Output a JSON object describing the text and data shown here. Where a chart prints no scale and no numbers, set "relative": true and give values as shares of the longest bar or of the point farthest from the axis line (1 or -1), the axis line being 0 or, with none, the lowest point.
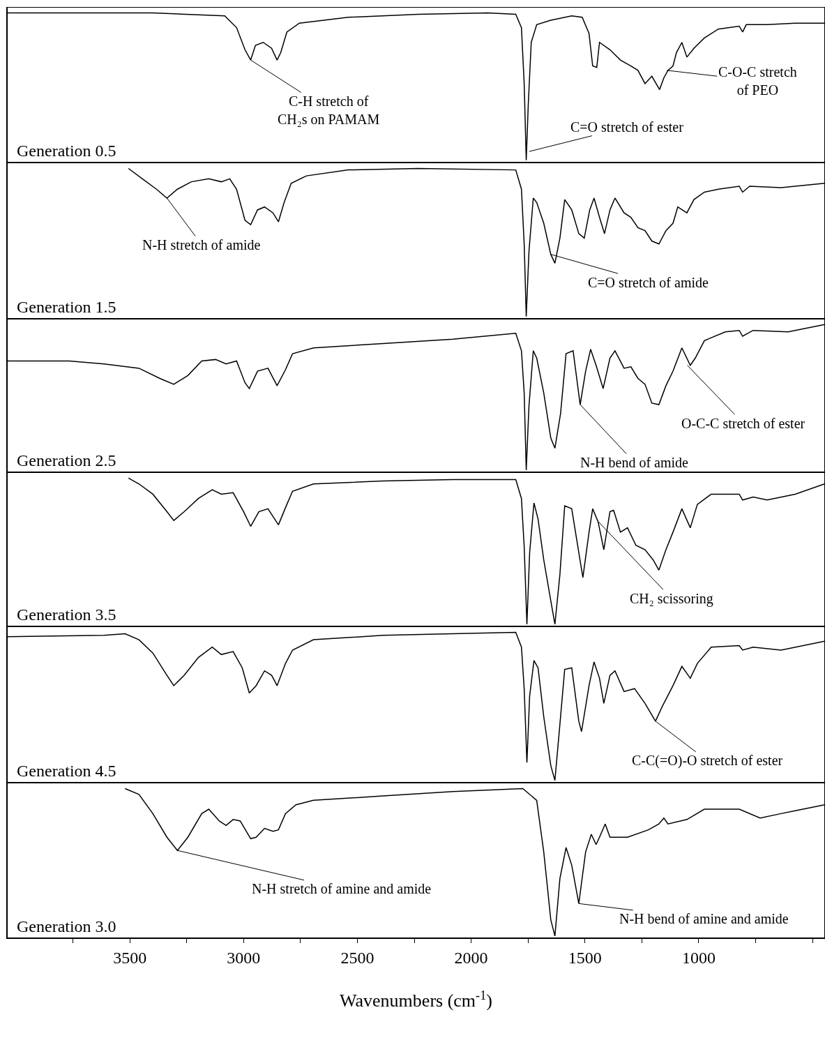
{
  "chart_data": [
    {
      "type": "line",
      "relative": true,
      "title": "Generation 0.5",
      "xlim": [
        4040,
        445
      ],
      "tick_labels": false,
      "x": [
        4040,
        3400,
        3083,
        3031,
        2994,
        2969,
        2948,
        2914,
        2877,
        2853,
        2837,
        2810,
        2755,
        2540,
        2233,
        1926,
        1804,
        1779,
        1767,
        1758,
        1749,
        1736,
        1712,
        1650,
        1558,
        1512,
        1482,
        1466,
        1448,
        1436,
        1390,
        1344,
        1298,
        1267,
        1236,
        1206,
        1172,
        1153,
        1135,
        1113,
        1098,
        1074,
        1052,
        1021,
        975,
        914,
        822,
        807,
        791,
        699,
        576,
        447
      ],
      "series": [
        {
          "color": "#000000",
          "values": [
            1.0,
            1.0,
            0.98,
            0.9,
            0.75,
            0.68,
            0.78,
            0.8,
            0.76,
            0.68,
            0.73,
            0.87,
            0.93,
            0.97,
            0.99,
            1.0,
            0.99,
            0.9,
            0.52,
            0.0,
            0.38,
            0.8,
            0.92,
            0.95,
            0.98,
            0.97,
            0.86,
            0.64,
            0.63,
            0.8,
            0.75,
            0.68,
            0.64,
            0.61,
            0.52,
            0.57,
            0.48,
            0.56,
            0.61,
            0.64,
            0.73,
            0.8,
            0.7,
            0.76,
            0.83,
            0.89,
            0.91,
            0.87,
            0.92,
            0.92,
            0.93,
            0.93
          ]
        }
      ],
      "annotations": [
        {
          "text": "C-H stretch of\nCH₂s on PAMAM",
          "x": 2969,
          "y": 0.68
        },
        {
          "text": "C=O stretch of ester",
          "x": 1745,
          "y": 0.06
        },
        {
          "text": "C-O-C stretch\nof PEO",
          "x": 1140,
          "y": 0.61
        }
      ]
    },
    {
      "type": "line",
      "relative": true,
      "title": "Generation 1.5",
      "xlim": [
        4040,
        445
      ],
      "tick_labels": false,
      "x": [
        3506,
        3445,
        3383,
        3337,
        3291,
        3230,
        3153,
        3098,
        3061,
        3031,
        2994,
        2969,
        2939,
        2908,
        2871,
        2847,
        2822,
        2791,
        2724,
        2540,
        2233,
        1804,
        1779,
        1767,
        1758,
        1746,
        1727,
        1712,
        1681,
        1650,
        1632,
        1610,
        1589,
        1558,
        1527,
        1503,
        1479,
        1460,
        1436,
        1414,
        1390,
        1368,
        1328,
        1298,
        1267,
        1236,
        1206,
        1175,
        1144,
        1113,
        1092,
        1052,
        1021,
        975,
        914,
        822,
        807,
        776,
        638,
        447
      ],
      "series": [
        {
          "color": "#000000",
          "values": [
            1.0,
            0.93,
            0.86,
            0.8,
            0.86,
            0.91,
            0.93,
            0.91,
            0.93,
            0.86,
            0.65,
            0.62,
            0.72,
            0.74,
            0.7,
            0.64,
            0.77,
            0.9,
            0.95,
            0.99,
            1.0,
            0.99,
            0.86,
            0.49,
            0.0,
            0.44,
            0.8,
            0.77,
            0.63,
            0.42,
            0.36,
            0.53,
            0.79,
            0.72,
            0.56,
            0.53,
            0.72,
            0.8,
            0.67,
            0.56,
            0.72,
            0.8,
            0.7,
            0.67,
            0.6,
            0.58,
            0.51,
            0.49,
            0.58,
            0.63,
            0.74,
            0.7,
            0.79,
            0.84,
            0.86,
            0.88,
            0.84,
            0.88,
            0.87,
            0.9
          ]
        }
      ],
      "annotations": [
        {
          "text": "N-H stretch of amide",
          "x": 3337,
          "y": 0.8
        },
        {
          "text": "C=O stretch of amide",
          "x": 1650,
          "y": 0.42
        }
      ]
    },
    {
      "type": "line",
      "relative": true,
      "title": "Generation 2.5",
      "xlim": [
        4040,
        445
      ],
      "tick_labels": false,
      "x": [
        4040,
        3767,
        3613,
        3460,
        3368,
        3307,
        3245,
        3184,
        3123,
        3077,
        3031,
        2994,
        2975,
        2939,
        2893,
        2853,
        2816,
        2785,
        2693,
        2387,
        2080,
        1804,
        1779,
        1767,
        1758,
        1746,
        1727,
        1712,
        1681,
        1650,
        1632,
        1607,
        1583,
        1552,
        1521,
        1497,
        1475,
        1451,
        1420,
        1390,
        1368,
        1328,
        1298,
        1267,
        1236,
        1206,
        1175,
        1144,
        1113,
        1074,
        1037,
        1015,
        975,
        883,
        822,
        807,
        761,
        607,
        447
      ],
      "series": [
        {
          "color": "#000000",
          "values": [
            0.75,
            0.75,
            0.73,
            0.7,
            0.63,
            0.59,
            0.65,
            0.75,
            0.76,
            0.73,
            0.75,
            0.6,
            0.56,
            0.68,
            0.7,
            0.58,
            0.69,
            0.8,
            0.84,
            0.87,
            0.9,
            0.94,
            0.82,
            0.53,
            0.0,
            0.44,
            0.82,
            0.77,
            0.53,
            0.22,
            0.15,
            0.39,
            0.8,
            0.82,
            0.45,
            0.68,
            0.83,
            0.72,
            0.56,
            0.77,
            0.82,
            0.7,
            0.71,
            0.63,
            0.59,
            0.46,
            0.45,
            0.58,
            0.68,
            0.84,
            0.72,
            0.77,
            0.89,
            0.95,
            0.96,
            0.92,
            0.96,
            0.95,
            1.0
          ]
        }
      ],
      "annotations": [
        {
          "text": "O-C-C stretch of ester",
          "x": 1050,
          "y": 0.72
        },
        {
          "text": "N-H bend of amide",
          "x": 1521,
          "y": 0.45
        }
      ]
    },
    {
      "type": "line",
      "relative": true,
      "title": "Generation 3.5",
      "xlim": [
        4040,
        445
      ],
      "tick_labels": false,
      "x": [
        3506,
        3460,
        3399,
        3337,
        3307,
        3261,
        3199,
        3138,
        3098,
        3046,
        3000,
        2969,
        2933,
        2893,
        2847,
        2810,
        2785,
        2693,
        2387,
        2080,
        1804,
        1779,
        1767,
        1755,
        1743,
        1724,
        1706,
        1681,
        1650,
        1632,
        1610,
        1589,
        1558,
        1527,
        1509,
        1482,
        1466,
        1442,
        1417,
        1390,
        1374,
        1344,
        1313,
        1276,
        1236,
        1200,
        1175,
        1144,
        1113,
        1074,
        1037,
        1006,
        945,
        822,
        807,
        761,
        699,
        576,
        447
      ],
      "series": [
        {
          "color": "#000000",
          "values": [
            1.0,
            0.96,
            0.89,
            0.77,
            0.71,
            0.77,
            0.86,
            0.92,
            0.89,
            0.9,
            0.77,
            0.67,
            0.77,
            0.79,
            0.68,
            0.82,
            0.91,
            0.96,
            0.98,
            0.99,
            0.99,
            0.86,
            0.53,
            0.0,
            0.49,
            0.83,
            0.72,
            0.44,
            0.16,
            0.0,
            0.34,
            0.81,
            0.79,
            0.49,
            0.32,
            0.63,
            0.79,
            0.7,
            0.51,
            0.77,
            0.78,
            0.63,
            0.66,
            0.54,
            0.51,
            0.44,
            0.37,
            0.51,
            0.63,
            0.79,
            0.66,
            0.82,
            0.89,
            0.89,
            0.85,
            0.87,
            0.85,
            0.89,
            0.96
          ]
        }
      ],
      "annotations": [
        {
          "text": "CH₂ scissoring",
          "x": 1440,
          "y": 0.7
        }
      ]
    },
    {
      "type": "line",
      "relative": true,
      "title": "Generation 4.5",
      "xlim": [
        4040,
        445
      ],
      "tick_labels": false,
      "x": [
        4040,
        3613,
        3521,
        3460,
        3399,
        3337,
        3307,
        3261,
        3199,
        3138,
        3098,
        3046,
        3006,
        2975,
        2945,
        2908,
        2877,
        2853,
        2816,
        2785,
        2693,
        2387,
        2080,
        1804,
        1779,
        1767,
        1755,
        1743,
        1724,
        1706,
        1681,
        1650,
        1632,
        1610,
        1589,
        1558,
        1527,
        1515,
        1482,
        1460,
        1436,
        1417,
        1390,
        1368,
        1328,
        1282,
        1236,
        1190,
        1160,
        1113,
        1074,
        1037,
        1006,
        945,
        822,
        807,
        761,
        638,
        447
      ],
      "series": [
        {
          "color": "#000000",
          "values": [
            0.97,
            0.98,
            0.99,
            0.95,
            0.86,
            0.71,
            0.64,
            0.71,
            0.83,
            0.9,
            0.85,
            0.87,
            0.76,
            0.59,
            0.64,
            0.74,
            0.71,
            0.64,
            0.79,
            0.88,
            0.95,
            0.98,
            0.99,
            1.0,
            0.9,
            0.62,
            0.12,
            0.57,
            0.81,
            0.76,
            0.43,
            0.1,
            0.0,
            0.38,
            0.75,
            0.76,
            0.4,
            0.33,
            0.64,
            0.8,
            0.69,
            0.52,
            0.71,
            0.74,
            0.6,
            0.62,
            0.52,
            0.4,
            0.5,
            0.64,
            0.77,
            0.69,
            0.79,
            0.9,
            0.91,
            0.88,
            0.9,
            0.88,
            0.94
          ]
        }
      ],
      "annotations": [
        {
          "text": "C-C(=O)-O stretch of ester",
          "x": 1190,
          "y": 0.4
        }
      ]
    },
    {
      "type": "line",
      "relative": true,
      "title": "Generation 3.0",
      "xlim": [
        4040,
        445
      ],
      "xlabel": "Wavenumbers (cm$^{-1}$)",
      "xticks": [
        {
          "value": 3750,
          "label": null
        },
        3500,
        {
          "value": 3250,
          "label": null
        },
        3000,
        {
          "value": 2750,
          "label": null
        },
        2500,
        {
          "value": 2250,
          "label": null
        },
        2000,
        {
          "value": 1750,
          "label": null
        },
        1500,
        {
          "value": 1250,
          "label": null
        },
        1000,
        {
          "value": 750,
          "label": null
        },
        {
          "value": 500,
          "label": null
        }
      ],
      "x": [
        3521,
        3460,
        3399,
        3337,
        3291,
        3245,
        3184,
        3153,
        3107,
        3077,
        3046,
        3015,
        2969,
        2945,
        2908,
        2871,
        2847,
        2816,
        2770,
        2693,
        2387,
        2080,
        1773,
        1712,
        1681,
        1650,
        1632,
        1610,
        1583,
        1558,
        1527,
        1497,
        1472,
        1451,
        1436,
        1411,
        1390,
        1313,
        1221,
        1175,
        1153,
        1135,
        1052,
        975,
        822,
        730,
        638,
        576,
        447
      ],
      "series": [
        {
          "color": "#000000",
          "values": [
            1.0,
            0.96,
            0.83,
            0.67,
            0.58,
            0.67,
            0.83,
            0.86,
            0.78,
            0.75,
            0.79,
            0.78,
            0.66,
            0.67,
            0.73,
            0.71,
            0.72,
            0.83,
            0.89,
            0.92,
            0.95,
            0.98,
            1.0,
            0.92,
            0.57,
            0.11,
            0.0,
            0.39,
            0.6,
            0.48,
            0.22,
            0.57,
            0.69,
            0.62,
            0.67,
            0.76,
            0.67,
            0.67,
            0.72,
            0.76,
            0.8,
            0.76,
            0.79,
            0.86,
            0.86,
            0.8,
            0.83,
            0.85,
            0.89
          ]
        }
      ],
      "annotations": [
        {
          "text": "N-H stretch of amine and amide",
          "x": 3291,
          "y": 0.58
        },
        {
          "text": "N-H bend of amine and amide",
          "x": 1527,
          "y": 0.22
        }
      ]
    }
  ]
}
